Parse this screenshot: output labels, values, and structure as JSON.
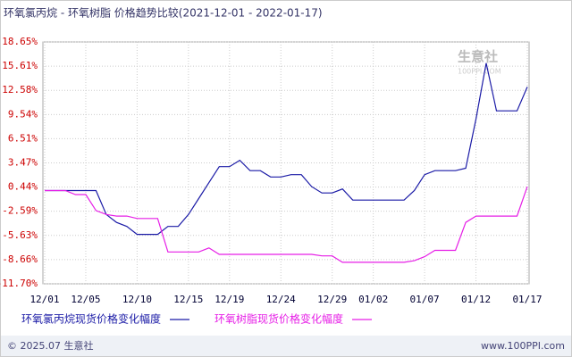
{
  "chart_data": {
    "type": "line",
    "title": "环氧氯丙烷 - 环氧树脂 价格趋势比较(2021-12-01 - 2022-01-17)",
    "watermark": "生意社",
    "watermark_sub": "100PPI.COM",
    "footer_left": "© 2025.07 生意社",
    "footer_right": "www.100PPI.com",
    "categories": [
      "12/01",
      null,
      null,
      null,
      "12/05",
      null,
      null,
      null,
      null,
      "12/10",
      null,
      null,
      null,
      null,
      "12/15",
      null,
      null,
      null,
      "12/19",
      null,
      null,
      null,
      null,
      "12/24",
      null,
      null,
      null,
      null,
      "12/29",
      null,
      null,
      null,
      "01/02",
      null,
      null,
      null,
      null,
      "01/07",
      null,
      null,
      null,
      null,
      "01/12",
      null,
      null,
      null,
      null,
      "01/17"
    ],
    "series": [
      {
        "name": "环氧氯丙烷现货价格变化幅度",
        "color": "#1a1aa6",
        "values": [
          0,
          0,
          0,
          0,
          0,
          0,
          -3,
          -4,
          -4.5,
          -5.5,
          -5.5,
          -5.5,
          -4.5,
          -4.5,
          -3,
          -1,
          1,
          3,
          3,
          3.8,
          2.5,
          2.5,
          1.7,
          1.7,
          2,
          2,
          0.5,
          -0.3,
          -0.3,
          0.2,
          -1.2,
          -1.2,
          -1.2,
          -1.2,
          -1.2,
          -1.2,
          0,
          2,
          2.5,
          2.5,
          2.5,
          2.8,
          9,
          16,
          10,
          10,
          10,
          13
        ]
      },
      {
        "name": "环氧树脂现货价格变化幅度",
        "color": "#e61ee6",
        "values": [
          0,
          0,
          0,
          -0.5,
          -0.5,
          -2.5,
          -3,
          -3.2,
          -3.2,
          -3.5,
          -3.5,
          -3.5,
          -7.7,
          -7.7,
          -7.7,
          -7.7,
          -7.2,
          -8,
          -8,
          -8,
          -8,
          -8,
          -8,
          -8,
          -8,
          -8,
          -8,
          -8.2,
          -8.2,
          -9,
          -9,
          -9,
          -9,
          -9,
          -9,
          -9,
          -8.8,
          -8.3,
          -7.5,
          -7.5,
          -7.5,
          -4,
          -3.2,
          -3.2,
          -3.2,
          -3.2,
          -3.2,
          0.5
        ]
      }
    ],
    "ylim": [
      -11.7,
      18.65
    ],
    "yticks": [
      {
        "value": 18.65,
        "label": "18.65%"
      },
      {
        "value": 15.61,
        "label": "15.61%"
      },
      {
        "value": 12.58,
        "label": "12.58%"
      },
      {
        "value": 9.54,
        "label": "9.54%"
      },
      {
        "value": 6.51,
        "label": "6.51%"
      },
      {
        "value": 3.47,
        "label": "3.47%"
      },
      {
        "value": 0.44,
        "label": "0.44%"
      },
      {
        "value": -2.59,
        "label": "-2.59%"
      },
      {
        "value": -5.63,
        "label": "-5.63%"
      },
      {
        "value": -8.66,
        "label": "-8.66%"
      },
      {
        "value": -11.7,
        "label": "-11.70%"
      }
    ],
    "grid": true
  }
}
